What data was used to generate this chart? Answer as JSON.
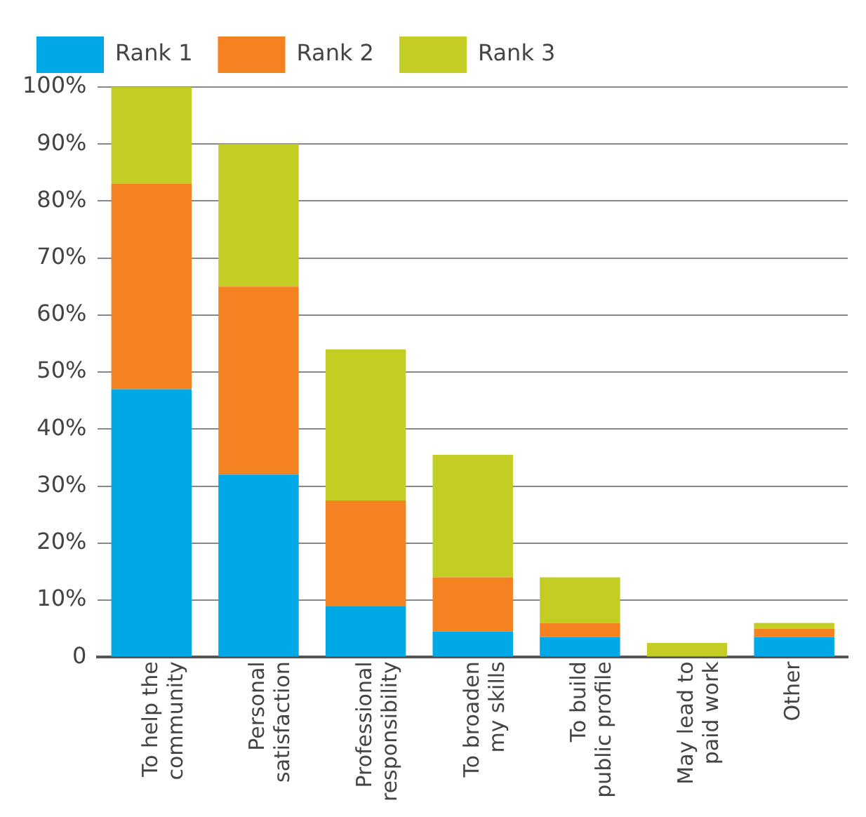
{
  "chart_data": {
    "type": "bar",
    "stacked": true,
    "categories": [
      "To help the\ncommunity",
      "Personal\nsatisfaction",
      "Professional\nresponsibility",
      "To broaden\nmy skills",
      "To build\npublic profile",
      "May lead to\npaid work",
      "Other"
    ],
    "series": [
      {
        "name": "Rank 1",
        "color": "#00a8e6",
        "values": [
          47,
          32,
          9,
          4.5,
          3.5,
          0,
          3.5
        ]
      },
      {
        "name": "Rank 2",
        "color": "#f58220",
        "values": [
          36,
          33,
          18.5,
          9.5,
          2.5,
          0,
          1.5
        ]
      },
      {
        "name": "Rank 3",
        "color": "#c4cd24",
        "values": [
          17,
          25,
          26.5,
          21.5,
          8,
          2.5,
          1
        ]
      }
    ],
    "ylim": [
      0,
      100
    ],
    "yticks": [
      0,
      {
        "value": 10,
        "label": "10%"
      },
      {
        "value": 20,
        "label": "20%"
      },
      {
        "value": 30,
        "label": "30%"
      },
      {
        "value": 40,
        "label": "40%"
      },
      {
        "value": 50,
        "label": "50%"
      },
      {
        "value": 60,
        "label": "60%"
      },
      {
        "value": 70,
        "label": "70%"
      },
      {
        "value": 80,
        "label": "80%"
      },
      {
        "value": 90,
        "label": "90%"
      },
      {
        "value": 100,
        "label": "100%"
      }
    ],
    "grid": "y",
    "legend": "top left"
  }
}
